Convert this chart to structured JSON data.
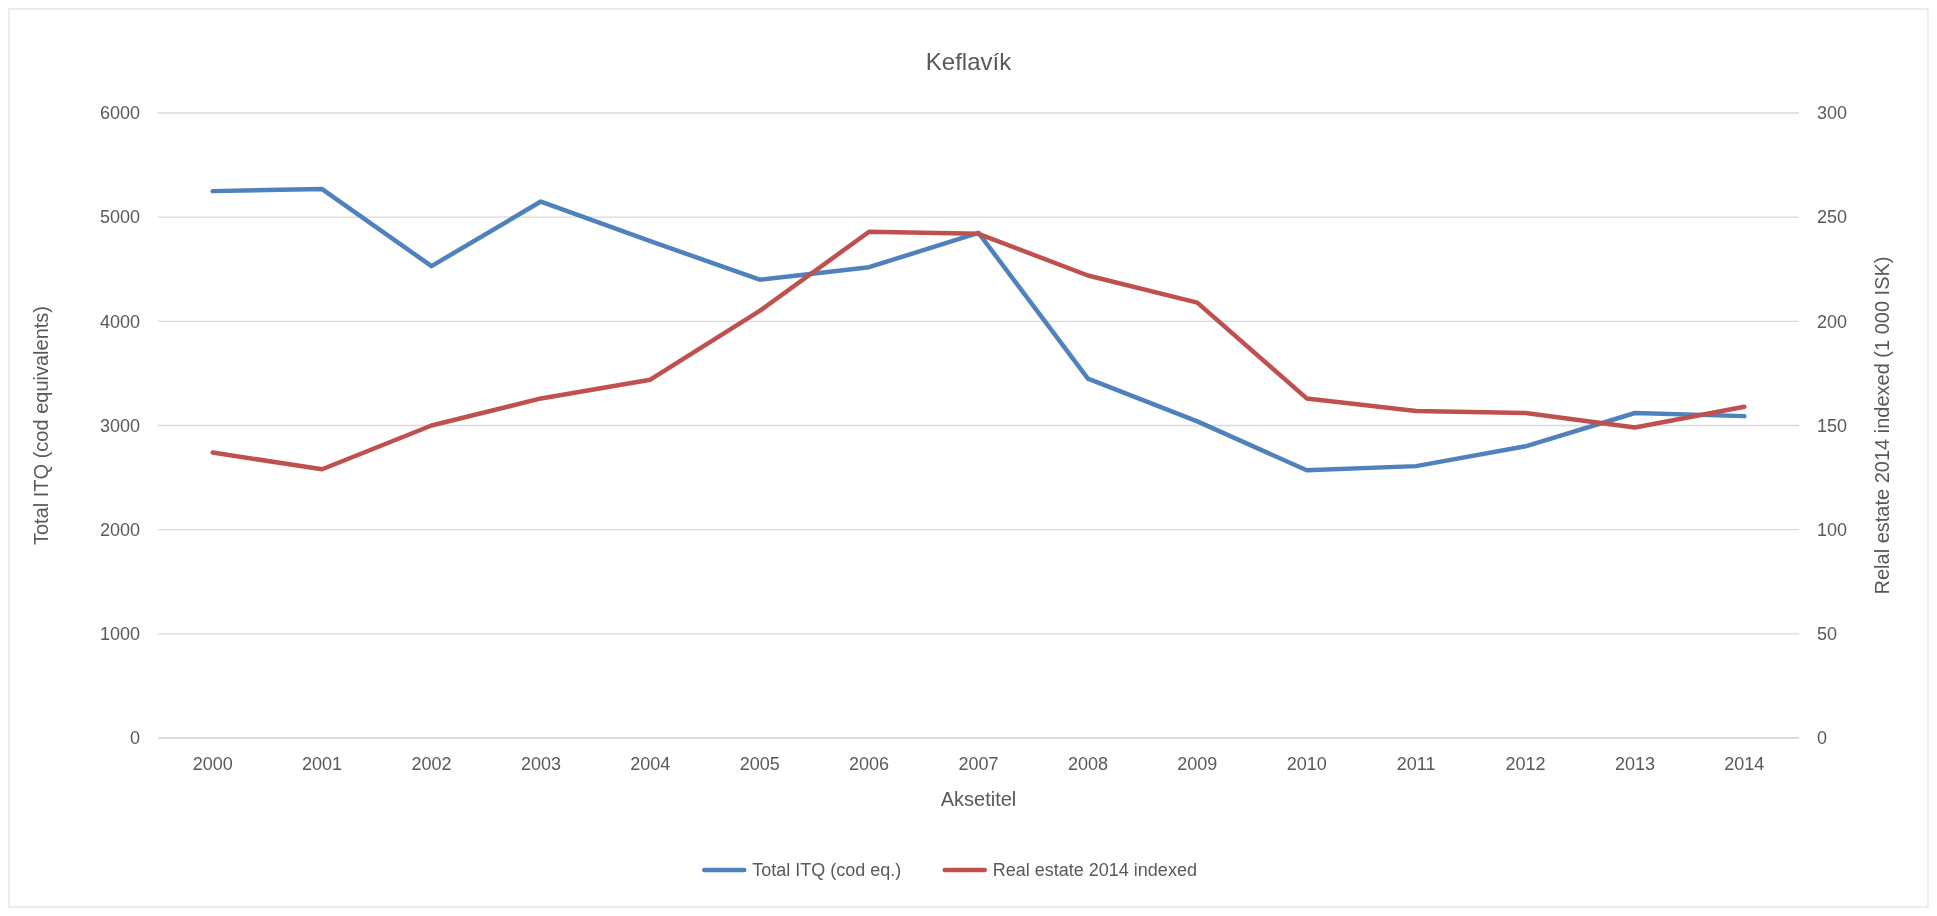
{
  "chart_data": {
    "type": "line",
    "title": "Keflavík",
    "xlabel": "Aksetitel",
    "ylabel": "Total ITQ (cod equivalents)",
    "y2label": "Relal estate 2014 indexed (1 000 ISK)",
    "categories": [
      "2000",
      "2001",
      "2002",
      "2003",
      "2004",
      "2005",
      "2006",
      "2007",
      "2008",
      "2009",
      "2010",
      "2011",
      "2012",
      "2013",
      "2014"
    ],
    "series": [
      {
        "name": "Total ITQ (cod eq.)",
        "color": "#4f81bd",
        "values": [
          5250,
          5270,
          4530,
          5150,
          4770,
          4400,
          4520,
          4850,
          3450,
          3040,
          2570,
          2610,
          2800,
          3120,
          3090
        ]
      },
      {
        "name": "Real estate 2014 indexed",
        "color": "#c0504d",
        "axis": "y2",
        "values": [
          137,
          129,
          150,
          163,
          172,
          205,
          243,
          242,
          222,
          209,
          163,
          157,
          156,
          149,
          159
        ]
      }
    ],
    "ylim": [
      0,
      6000
    ],
    "yticks": [
      0,
      1000,
      2000,
      3000,
      4000,
      5000,
      6000
    ],
    "y2lim": [
      0,
      300
    ],
    "y2ticks": [
      0,
      50,
      100,
      150,
      200,
      250,
      300
    ],
    "grid": "y",
    "legend": "bottom",
    "marker": "none",
    "line_style": "solid"
  }
}
